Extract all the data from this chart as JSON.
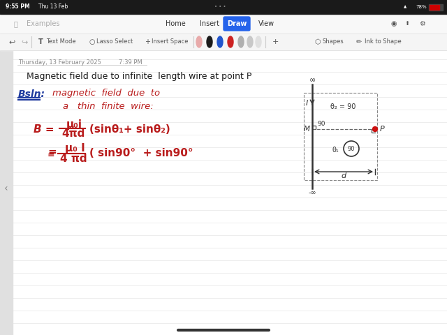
{
  "bg_color": "#f0f0f0",
  "status_bar_bg": "#1a1a1a",
  "status_time": "9:55 PM",
  "status_date": "Thu 13 Feb",
  "status_battery": "78%",
  "search_bar_bg": "#f2f2f2",
  "search_placeholder": "Examples",
  "nav_tabs": [
    "Home",
    "Insert",
    "Draw",
    "View"
  ],
  "active_tab": "Draw",
  "active_tab_bg": "#2563eb",
  "toolbar_bg": "#f5f5f5",
  "toolbar_items": [
    "Text Mode",
    "Lasso Select",
    "Insert Space"
  ],
  "pen_colors": [
    "#e8aaaa",
    "#1a1a1a",
    "#2255cc",
    "#cc2222",
    "#aaaaaa",
    "#cccccc",
    "#dddddd"
  ],
  "page_bg": "#ffffff",
  "page_line_color": "#d8d8d8",
  "sidebar_bg": "#e0e0e0",
  "note_date": "Thursday, 13 February 2025",
  "note_time": "7:39 PM",
  "title_text": "Magnetic field due to infinite  length wire at point P",
  "title_color": "#1a1a1a",
  "soln_color": "#1e3a9e",
  "red_color": "#b91c1c",
  "diagram_wire_color": "#333333",
  "diagram_dashed_color": "#666666",
  "diagram_P_color": "#cc1111",
  "line_color": "#cccccc"
}
